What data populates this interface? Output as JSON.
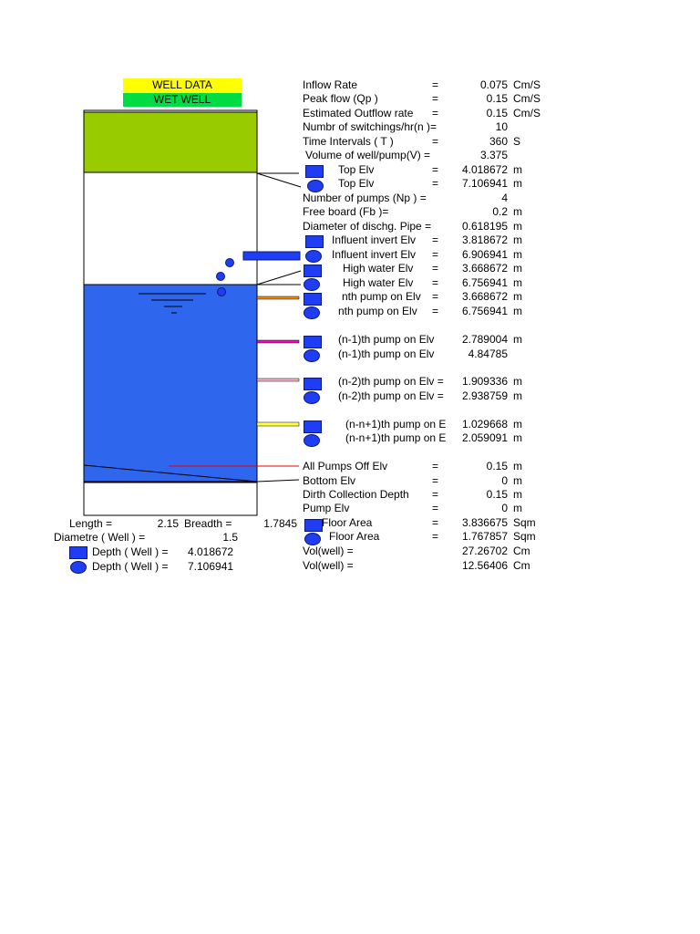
{
  "header": {
    "well_data": "WELL DATA",
    "wet_well": "WET WELL",
    "well_data_color": "#ffff00",
    "wet_well_color": "#00dd44"
  },
  "colors": {
    "water": "#2f66ee",
    "top_band": "#99cc00",
    "pump_blue": "#1f3df2"
  },
  "rows": [
    {
      "label": "Inflow Rate",
      "eq": "=",
      "value": "0.075",
      "unit": "Cm/S"
    },
    {
      "label": "Peak flow  (Qp )",
      "eq": "=",
      "value": "0.15",
      "unit": "Cm/S"
    },
    {
      "label": "Estimated Outflow rate",
      "eq": "=",
      "value": "0.15",
      "unit": "Cm/S"
    },
    {
      "label": "Numbr of switchings/hr(n )=",
      "eq": "",
      "value": "10",
      "unit": ""
    },
    {
      "label": "Time Intervals ( T )",
      "eq": "=",
      "value": "360",
      "unit": "S"
    },
    {
      "label": " Volume of well/pump(V)  =",
      "eq": "",
      "value": "3.375",
      "unit": ""
    },
    {
      "label": "Top Elv",
      "eq": "=",
      "value": "4.018672",
      "unit": "m"
    },
    {
      "label": "Top Elv",
      "eq": "=",
      "value": "7.106941",
      "unit": "m"
    },
    {
      "label": "Number of pumps    (Np ) =",
      "eq": "",
      "value": "4",
      "unit": ""
    },
    {
      "label": "Free board              (Fb )=",
      "eq": "",
      "value": "0.2",
      "unit": "m"
    },
    {
      "label": "Diameter of dischg. Pipe  =",
      "eq": "",
      "value": "0.618195",
      "unit": "m"
    },
    {
      "label": "Influent invert Elv",
      "eq": "=",
      "value": "3.818672",
      "unit": "m"
    },
    {
      "label": "Influent invert Elv",
      "eq": "=",
      "value": "6.906941",
      "unit": "m"
    },
    {
      "label": "High water  Elv",
      "eq": "=",
      "value": "3.668672",
      "unit": "m"
    },
    {
      "label": "High water  Elv",
      "eq": "=",
      "value": "6.756941",
      "unit": "m"
    },
    {
      "label": "nth pump on Elv",
      "eq": "=",
      "value": "3.668672",
      "unit": "m"
    },
    {
      "label": "nth pump on Elv",
      "eq": "=",
      "value": "6.756941",
      "unit": "m"
    },
    {
      "label": "(n-1)th pump on Elv",
      "eq": "",
      "value": "2.789004",
      "unit": "m"
    },
    {
      "label": "(n-1)th pump on Elv",
      "eq": "",
      "value": "4.84785",
      "unit": ""
    },
    {
      "label": "(n-2)th pump on Elv =",
      "eq": "",
      "value": "1.909336",
      "unit": "m"
    },
    {
      "label": "(n-2)th pump on Elv =",
      "eq": "",
      "value": "2.938759",
      "unit": "m"
    },
    {
      "label": "(n-n+1)th pump on E",
      "eq": "",
      "value": "1.029668",
      "unit": "m"
    },
    {
      "label": "(n-n+1)th pump on E",
      "eq": "",
      "value": "2.059091",
      "unit": "m"
    },
    {
      "label": "All Pumps Off  Elv",
      "eq": "=",
      "value": "0.15",
      "unit": "m"
    },
    {
      "label": "Bottom Elv",
      "eq": "=",
      "value": "0",
      "unit": "m"
    },
    {
      "label": "Dirth Collection Depth",
      "eq": "=",
      "value": "0.15",
      "unit": "m"
    },
    {
      "label": "Pump Elv",
      "eq": "=",
      "value": "0",
      "unit": "m"
    },
    {
      "label": "Floor Area",
      "eq": "=",
      "value": "3.836675",
      "unit": "Sqm"
    },
    {
      "label": "Floor Area",
      "eq": "=",
      "value": "1.767857",
      "unit": "Sqm"
    },
    {
      "label": "Vol(well) =",
      "eq": "",
      "value": "27.26702",
      "unit": "Cm"
    },
    {
      "label": "Vol(well) =",
      "eq": "",
      "value": "12.56406",
      "unit": "Cm"
    }
  ],
  "dims": {
    "length_label": "Length  =",
    "length_value": "2.15",
    "breadth_label": "Breadth =",
    "breadth_value": "1.7845",
    "diametre_label": "Diametre     ( Well ) =",
    "diametre_value": "1.5",
    "depth_label_1": "Depth ( Well ) =",
    "depth_value_1": "4.018672",
    "depth_label_2": "Depth ( Well ) =",
    "depth_value_2": "7.106941"
  }
}
